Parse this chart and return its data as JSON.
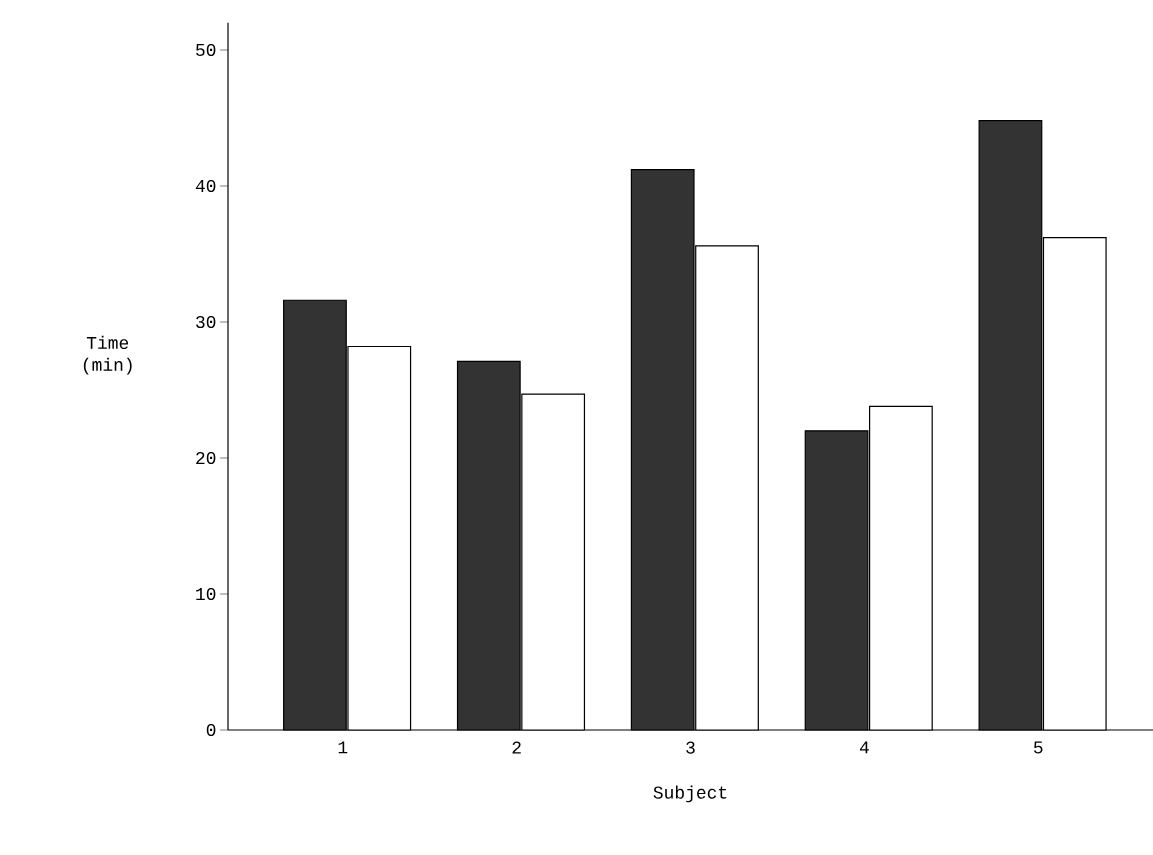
{
  "chart_data": {
    "type": "bar",
    "xlabel": "Subject",
    "ylabel": "Time (min)",
    "categories": [
      "1",
      "2",
      "3",
      "4",
      "5"
    ],
    "series": [
      {
        "color": "#333333",
        "values": [
          31.6,
          27.1,
          41.2,
          22.0,
          44.8
        ]
      },
      {
        "color": "#ffffff",
        "values": [
          28.2,
          24.7,
          35.6,
          23.8,
          36.2
        ]
      }
    ],
    "ylim": [
      0,
      52
    ],
    "yticks": [
      0,
      10,
      20,
      30,
      40,
      50
    ]
  }
}
